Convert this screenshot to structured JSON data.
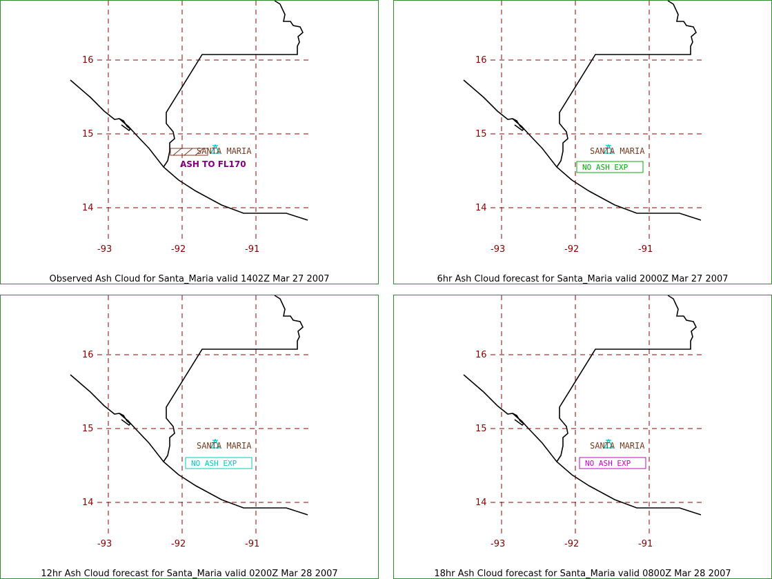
{
  "grid": {
    "lat_labels": [
      "16",
      "15",
      "14"
    ],
    "lon_labels": [
      "-93",
      "-92",
      "-91"
    ]
  },
  "volcano": {
    "name": "SANTA MARIA"
  },
  "colors": {
    "panel_border": "#2e8b2e",
    "grid": "#8b0000",
    "coast": "#000000",
    "volcano_symbol": "#00c8c8",
    "volcano_label": "#7a3b1f",
    "ash_label": "#800080",
    "noash_6hr": "#00b000",
    "noash_12hr": "#00c8c8",
    "noash_18hr": "#cc00cc"
  },
  "panels": [
    {
      "id": "observed",
      "caption": "Observed Ash Cloud for Santa_Maria valid 1402Z Mar 27 2007",
      "ash_label": "ASH TO FL170",
      "noash_label": null
    },
    {
      "id": "fcst6",
      "caption": "6hr Ash Cloud forecast for Santa_Maria valid 2000Z Mar 27 2007",
      "ash_label": null,
      "noash_label": "NO ASH EXP"
    },
    {
      "id": "fcst12",
      "caption": "12hr Ash Cloud forecast for Santa_Maria valid 0200Z Mar 28 2007",
      "ash_label": null,
      "noash_label": "NO ASH EXP"
    },
    {
      "id": "fcst18",
      "caption": "18hr Ash Cloud forecast for Santa_Maria valid 0800Z Mar 28 2007",
      "ash_label": null,
      "noash_label": "NO ASH EXP"
    }
  ]
}
